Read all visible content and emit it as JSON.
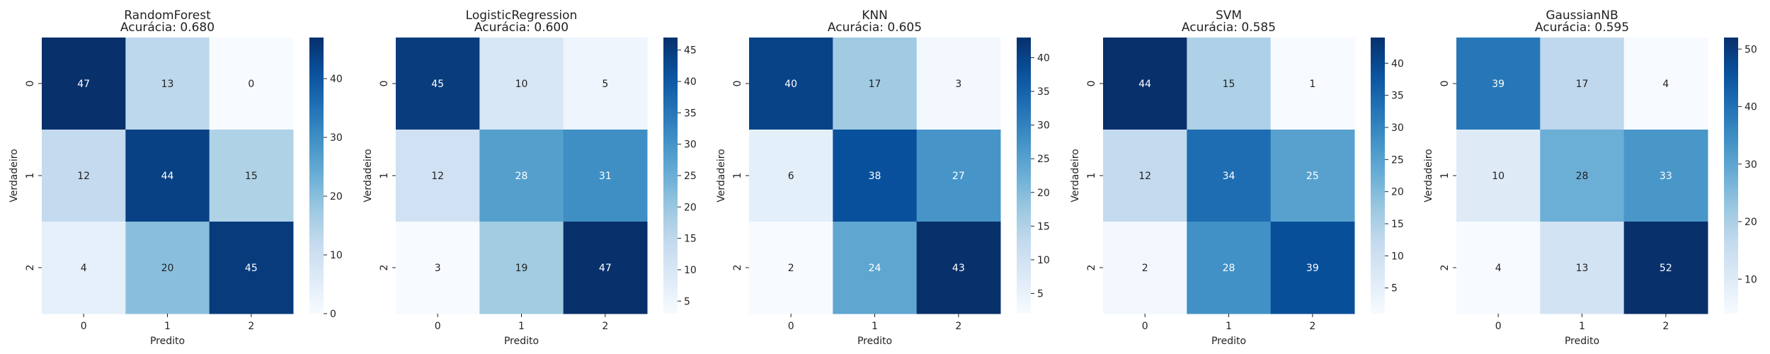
{
  "chart_data": [
    {
      "type": "heatmap",
      "title": "RandomForest",
      "subtitle": "Acurácia: 0.680",
      "xlabel": "Predito",
      "ylabel": "Verdadeiro",
      "x_categories": [
        "0",
        "1",
        "2"
      ],
      "y_categories": [
        "0",
        "1",
        "2"
      ],
      "values": [
        [
          47,
          13,
          0
        ],
        [
          12,
          44,
          15
        ],
        [
          4,
          20,
          45
        ]
      ],
      "colorbar": {
        "range": [
          0,
          47
        ],
        "ticks": [
          0,
          10,
          20,
          30,
          40
        ]
      },
      "colormap": "Blues"
    },
    {
      "type": "heatmap",
      "title": "LogisticRegression",
      "subtitle": "Acurácia: 0.600",
      "xlabel": "Predito",
      "ylabel": "Verdadeiro",
      "x_categories": [
        "0",
        "1",
        "2"
      ],
      "y_categories": [
        "0",
        "1",
        "2"
      ],
      "values": [
        [
          45,
          10,
          5
        ],
        [
          12,
          28,
          31
        ],
        [
          3,
          19,
          47
        ]
      ],
      "colorbar": {
        "range": [
          3,
          47
        ],
        "ticks": [
          5,
          10,
          15,
          20,
          25,
          30,
          35,
          40,
          45
        ]
      },
      "colormap": "Blues"
    },
    {
      "type": "heatmap",
      "title": "KNN",
      "subtitle": "Acurácia: 0.605",
      "xlabel": "Predito",
      "ylabel": "Verdadeiro",
      "x_categories": [
        "0",
        "1",
        "2"
      ],
      "y_categories": [
        "0",
        "1",
        "2"
      ],
      "values": [
        [
          40,
          17,
          3
        ],
        [
          6,
          38,
          27
        ],
        [
          2,
          24,
          43
        ]
      ],
      "colorbar": {
        "range": [
          2,
          43
        ],
        "ticks": [
          5,
          10,
          15,
          20,
          25,
          30,
          35,
          40
        ]
      },
      "colormap": "Blues"
    },
    {
      "type": "heatmap",
      "title": "SVM",
      "subtitle": "Acurácia: 0.585",
      "xlabel": "Predito",
      "ylabel": "Verdadeiro",
      "x_categories": [
        "0",
        "1",
        "2"
      ],
      "y_categories": [
        "0",
        "1",
        "2"
      ],
      "values": [
        [
          44,
          15,
          1
        ],
        [
          12,
          34,
          25
        ],
        [
          2,
          28,
          39
        ]
      ],
      "colorbar": {
        "range": [
          1,
          44
        ],
        "ticks": [
          5,
          10,
          15,
          20,
          25,
          30,
          35,
          40
        ]
      },
      "colormap": "Blues"
    },
    {
      "type": "heatmap",
      "title": "GaussianNB",
      "subtitle": "Acurácia: 0.595",
      "xlabel": "Predito",
      "ylabel": "Verdadeiro",
      "x_categories": [
        "0",
        "1",
        "2"
      ],
      "y_categories": [
        "0",
        "1",
        "2"
      ],
      "values": [
        [
          39,
          17,
          4
        ],
        [
          10,
          28,
          33
        ],
        [
          4,
          13,
          52
        ]
      ],
      "colorbar": {
        "range": [
          4,
          52
        ],
        "ticks": [
          10,
          20,
          30,
          40,
          50
        ]
      },
      "colormap": "Blues"
    }
  ]
}
